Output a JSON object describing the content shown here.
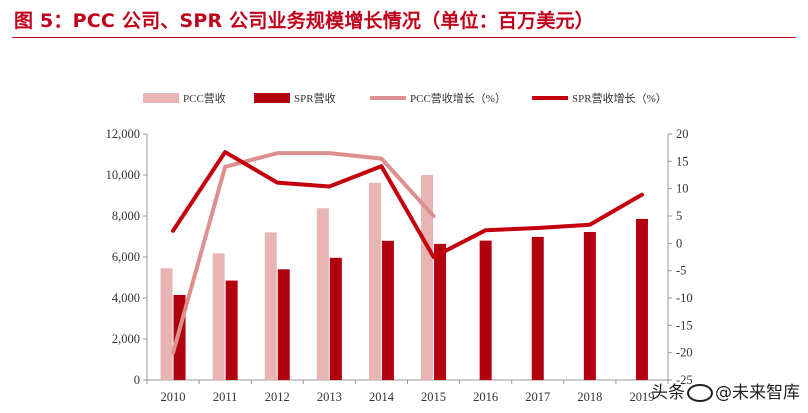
{
  "header": {
    "title": "图 5：PCC 公司、SPR 公司业务规模增长情况（单位：百万美元）"
  },
  "watermark": {
    "text_left": "头条",
    "text_right": "@未来智库"
  },
  "colors": {
    "title": "#c0001a",
    "pcc_bar": "#e8b4b4",
    "spr_bar": "#b3000f",
    "pcc_line": "#de8f8f",
    "spr_line": "#c4000c",
    "axis": "#999999"
  },
  "chart_data": {
    "type": "bar",
    "categories": [
      "2010",
      "2011",
      "2012",
      "2013",
      "2014",
      "2015",
      "2016",
      "2017",
      "2018",
      "2019"
    ],
    "legend": [
      "PCC营收",
      "SPR营收",
      "PCC营收增长（%）",
      "SPR营收增长（%）"
    ],
    "legend_position": "top",
    "series": [
      {
        "name": "PCC营收",
        "kind": "bar",
        "axis": "left",
        "values": [
          5450,
          6180,
          7200,
          8380,
          9620,
          10000,
          null,
          null,
          null,
          null
        ]
      },
      {
        "name": "SPR营收",
        "kind": "bar",
        "axis": "left",
        "values": [
          4150,
          4850,
          5400,
          5960,
          6790,
          6640,
          6800,
          6980,
          7220,
          7860
        ]
      },
      {
        "name": "PCC营收增长（%）",
        "kind": "line",
        "axis": "right",
        "values": [
          -20,
          14,
          16.5,
          16.5,
          15.5,
          5,
          null,
          null,
          null,
          null
        ]
      },
      {
        "name": "SPR营收增长（%）",
        "kind": "line",
        "axis": "right",
        "values": [
          2.3,
          16.7,
          11.1,
          10.4,
          14.1,
          -2.5,
          2.4,
          2.8,
          3.4,
          8.9
        ]
      }
    ],
    "y_left": {
      "min": 0,
      "max": 12000,
      "ticks": [
        0,
        2000,
        4000,
        6000,
        8000,
        10000,
        12000
      ],
      "tick_labels": [
        "0",
        "2,000",
        "4,000",
        "6,000",
        "8,000",
        "10,000",
        "12,000"
      ]
    },
    "y_right": {
      "min": -25,
      "max": 20,
      "ticks": [
        -25,
        -20,
        -15,
        -10,
        -5,
        0,
        5,
        10,
        15,
        20
      ],
      "tick_labels": [
        "-25",
        "-20",
        "-15",
        "-10",
        "-5",
        "0",
        "5",
        "10",
        "15",
        "20"
      ]
    },
    "grid": false
  }
}
